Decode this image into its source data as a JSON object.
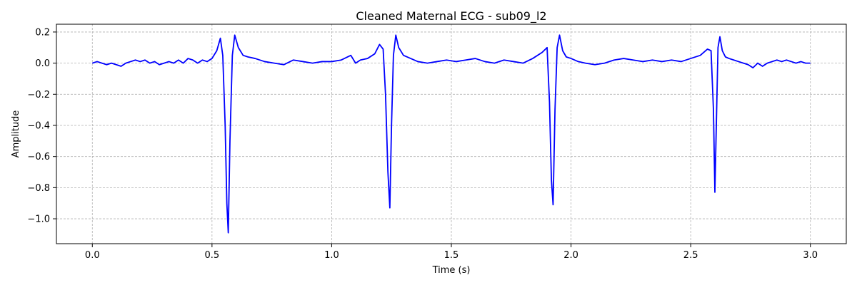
{
  "chart_data": {
    "type": "line",
    "title": "Cleaned Maternal ECG - sub09_l2",
    "xlabel": "Time (s)",
    "ylabel": "Amplitude",
    "xlim": [
      -0.15,
      3.15
    ],
    "ylim": [
      -1.16,
      0.25
    ],
    "x_ticks": [
      0.0,
      0.5,
      1.0,
      1.5,
      2.0,
      2.5,
      3.0
    ],
    "x_tick_labels": [
      "0.0",
      "0.5",
      "1.0",
      "1.5",
      "2.0",
      "2.5",
      "3.0"
    ],
    "y_ticks": [
      0.2,
      0.0,
      -0.2,
      -0.4,
      -0.6,
      -0.8,
      -1.0
    ],
    "y_tick_labels": [
      "0.2",
      "0.0",
      "−0.2",
      "−0.4",
      "−0.6",
      "−0.8",
      "−1.0"
    ],
    "grid": true,
    "line_color": "#0000ff",
    "series": [
      {
        "x": [
          0.0,
          0.02,
          0.04,
          0.06,
          0.08,
          0.1,
          0.12,
          0.14,
          0.16,
          0.18,
          0.2,
          0.22,
          0.24,
          0.26,
          0.28,
          0.3,
          0.32,
          0.34,
          0.36,
          0.38,
          0.4,
          0.42,
          0.44,
          0.46,
          0.48,
          0.5,
          0.52,
          0.535,
          0.545,
          0.555,
          0.562,
          0.568,
          0.575,
          0.585,
          0.595,
          0.61,
          0.63,
          0.65,
          0.68,
          0.72,
          0.76,
          0.8,
          0.84,
          0.88,
          0.92,
          0.96,
          1.0,
          1.04,
          1.08,
          1.1,
          1.12,
          1.15,
          1.18,
          1.2,
          1.215,
          1.225,
          1.235,
          1.243,
          1.25,
          1.258,
          1.268,
          1.28,
          1.3,
          1.33,
          1.36,
          1.4,
          1.44,
          1.48,
          1.52,
          1.56,
          1.6,
          1.64,
          1.68,
          1.72,
          1.76,
          1.8,
          1.84,
          1.88,
          1.9,
          1.91,
          1.918,
          1.925,
          1.933,
          1.942,
          1.952,
          1.965,
          1.98,
          2.0,
          2.03,
          2.06,
          2.1,
          2.14,
          2.18,
          2.22,
          2.26,
          2.3,
          2.34,
          2.38,
          2.42,
          2.46,
          2.5,
          2.54,
          2.57,
          2.585,
          2.595,
          2.601,
          2.607,
          2.614,
          2.622,
          2.632,
          2.645,
          2.66,
          2.68,
          2.7,
          2.72,
          2.74,
          2.76,
          2.78,
          2.8,
          2.82,
          2.84,
          2.86,
          2.88,
          2.9,
          2.92,
          2.94,
          2.96,
          2.98,
          3.0
        ],
        "y": [
          0.0,
          0.01,
          0.0,
          -0.01,
          0.0,
          -0.01,
          -0.02,
          0.0,
          0.01,
          0.02,
          0.01,
          0.02,
          0.0,
          0.01,
          -0.01,
          0.0,
          0.01,
          0.0,
          0.02,
          0.0,
          0.03,
          0.02,
          0.0,
          0.02,
          0.01,
          0.03,
          0.08,
          0.16,
          0.05,
          -0.4,
          -0.9,
          -1.09,
          -0.5,
          0.05,
          0.18,
          0.1,
          0.05,
          0.04,
          0.03,
          0.01,
          0.0,
          -0.01,
          0.02,
          0.01,
          0.0,
          0.01,
          0.01,
          0.02,
          0.05,
          0.0,
          0.02,
          0.03,
          0.06,
          0.12,
          0.09,
          -0.2,
          -0.7,
          -0.93,
          -0.4,
          0.05,
          0.18,
          0.1,
          0.05,
          0.03,
          0.01,
          0.0,
          0.01,
          0.02,
          0.01,
          0.02,
          0.03,
          0.01,
          0.0,
          0.02,
          0.01,
          0.0,
          0.03,
          0.07,
          0.1,
          -0.25,
          -0.75,
          -0.91,
          -0.3,
          0.1,
          0.18,
          0.08,
          0.04,
          0.03,
          0.01,
          0.0,
          -0.01,
          0.0,
          0.02,
          0.03,
          0.02,
          0.01,
          0.02,
          0.01,
          0.02,
          0.01,
          0.03,
          0.05,
          0.09,
          0.08,
          -0.3,
          -0.83,
          -0.4,
          0.1,
          0.17,
          0.08,
          0.04,
          0.03,
          0.02,
          0.01,
          0.0,
          -0.01,
          -0.03,
          0.0,
          -0.02,
          0.0,
          0.01,
          0.02,
          0.01,
          0.02,
          0.01,
          0.0,
          0.01,
          0.0,
          0.0
        ]
      }
    ]
  }
}
